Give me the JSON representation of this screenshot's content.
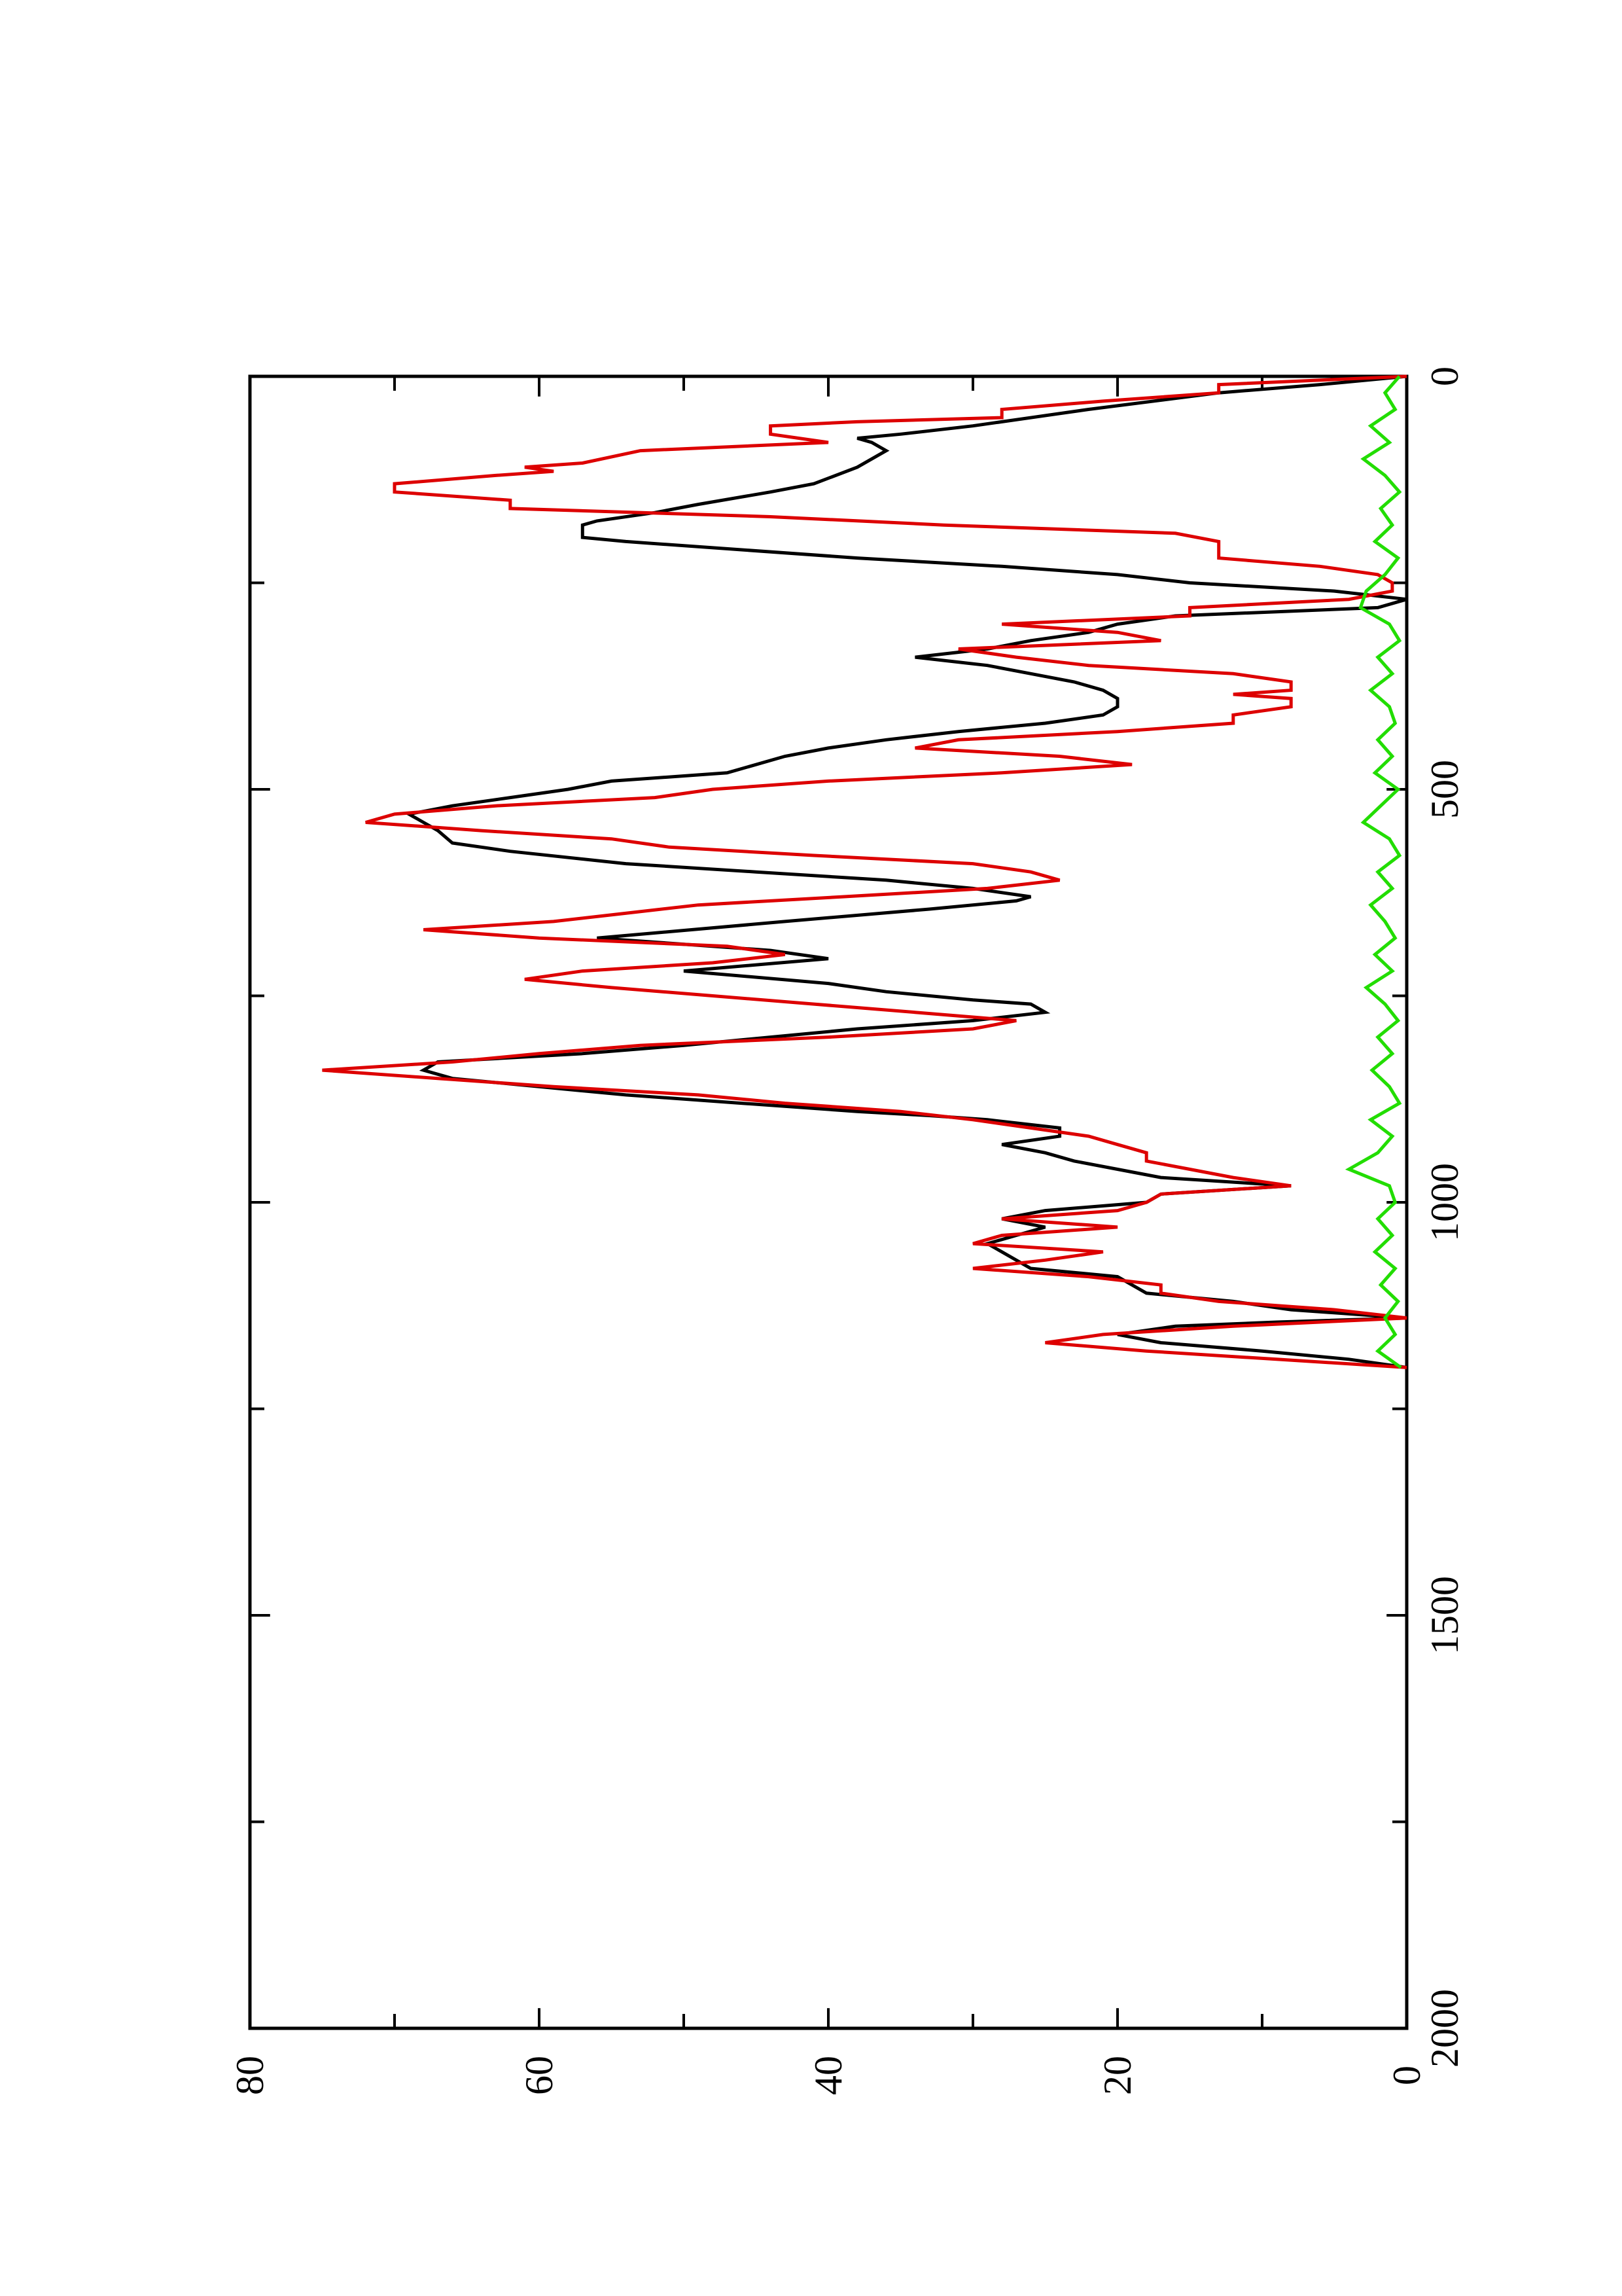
{
  "chart_data": {
    "type": "line",
    "orientation": "rotated-90",
    "title": "",
    "xlabel": "",
    "ylabel": "",
    "xlim": [
      0,
      2000
    ],
    "ylim": [
      0,
      80
    ],
    "x_ticks": [
      0,
      500,
      1000,
      1500,
      2000
    ],
    "y_ticks": [
      0,
      20,
      40,
      60,
      80
    ],
    "x_tick_labels": [
      "0",
      "500",
      "1000",
      "1500",
      "2000"
    ],
    "y_tick_labels": [
      "0",
      "20",
      "40",
      "60",
      "80"
    ],
    "grid": false,
    "legend": "none",
    "series": [
      {
        "color": "#000000",
        "points": [
          [
            0,
            0
          ],
          [
            10,
            6
          ],
          [
            20,
            13
          ],
          [
            40,
            22
          ],
          [
            60,
            30
          ],
          [
            70,
            35
          ],
          [
            75,
            38
          ],
          [
            80,
            37
          ],
          [
            90,
            36
          ],
          [
            110,
            38
          ],
          [
            130,
            41
          ],
          [
            140,
            44
          ],
          [
            155,
            49
          ],
          [
            165,
            52
          ],
          [
            175,
            56
          ],
          [
            180,
            57
          ],
          [
            195,
            57
          ],
          [
            200,
            54
          ],
          [
            210,
            46
          ],
          [
            220,
            38
          ],
          [
            230,
            28
          ],
          [
            240,
            20
          ],
          [
            250,
            15
          ],
          [
            260,
            5
          ],
          [
            270,
            0
          ],
          [
            280,
            2
          ],
          [
            290,
            16
          ],
          [
            300,
            20
          ],
          [
            310,
            22
          ],
          [
            320,
            26
          ],
          [
            330,
            29
          ],
          [
            340,
            34
          ],
          [
            350,
            29
          ],
          [
            360,
            26
          ],
          [
            370,
            23
          ],
          [
            380,
            21
          ],
          [
            390,
            20
          ],
          [
            400,
            20
          ],
          [
            410,
            21
          ],
          [
            420,
            25
          ],
          [
            430,
            31
          ],
          [
            440,
            36
          ],
          [
            450,
            40
          ],
          [
            460,
            43
          ],
          [
            480,
            47
          ],
          [
            490,
            55
          ],
          [
            500,
            58
          ],
          [
            510,
            62
          ],
          [
            520,
            66
          ],
          [
            530,
            69
          ],
          [
            540,
            68
          ],
          [
            550,
            67
          ],
          [
            565,
            66
          ],
          [
            575,
            62
          ],
          [
            590,
            54
          ],
          [
            600,
            45
          ],
          [
            610,
            36
          ],
          [
            620,
            30
          ],
          [
            630,
            26
          ],
          [
            635,
            27
          ],
          [
            645,
            33
          ],
          [
            660,
            43
          ],
          [
            680,
            56
          ],
          [
            695,
            44
          ],
          [
            705,
            40
          ],
          [
            720,
            50
          ],
          [
            735,
            40
          ],
          [
            745,
            36
          ],
          [
            755,
            30
          ],
          [
            760,
            26
          ],
          [
            770,
            25
          ],
          [
            780,
            30
          ],
          [
            790,
            38
          ],
          [
            800,
            44
          ],
          [
            810,
            50
          ],
          [
            820,
            57
          ],
          [
            830,
            67
          ],
          [
            840,
            68
          ],
          [
            850,
            66
          ],
          [
            860,
            60
          ],
          [
            870,
            54
          ],
          [
            880,
            46
          ],
          [
            890,
            38
          ],
          [
            895,
            33
          ],
          [
            900,
            29
          ],
          [
            910,
            24
          ],
          [
            920,
            24
          ],
          [
            930,
            28
          ],
          [
            940,
            25
          ],
          [
            950,
            23
          ],
          [
            960,
            20
          ],
          [
            970,
            17
          ],
          [
            980,
            8
          ],
          [
            990,
            17
          ],
          [
            1000,
            18
          ],
          [
            1010,
            25
          ],
          [
            1020,
            28
          ],
          [
            1030,
            25
          ],
          [
            1040,
            27
          ],
          [
            1050,
            29
          ],
          [
            1060,
            28
          ],
          [
            1080,
            26
          ],
          [
            1090,
            20
          ],
          [
            1100,
            19
          ],
          [
            1110,
            18
          ],
          [
            1120,
            12
          ],
          [
            1130,
            8
          ],
          [
            1140,
            0
          ],
          [
            1145,
            9
          ],
          [
            1150,
            16
          ],
          [
            1160,
            20
          ],
          [
            1170,
            17
          ],
          [
            1180,
            10
          ],
          [
            1190,
            4
          ],
          [
            1200,
            0
          ]
        ]
      },
      {
        "color": "#dd0000",
        "points": [
          [
            0,
            0
          ],
          [
            10,
            13
          ],
          [
            20,
            13
          ],
          [
            30,
            21
          ],
          [
            40,
            28
          ],
          [
            50,
            28
          ],
          [
            55,
            38
          ],
          [
            60,
            44
          ],
          [
            70,
            44
          ],
          [
            80,
            40
          ],
          [
            90,
            53
          ],
          [
            105,
            57
          ],
          [
            110,
            61
          ],
          [
            115,
            59
          ],
          [
            120,
            63
          ],
          [
            130,
            70
          ],
          [
            140,
            70
          ],
          [
            150,
            62
          ],
          [
            160,
            62
          ],
          [
            170,
            44
          ],
          [
            180,
            32
          ],
          [
            190,
            16
          ],
          [
            200,
            13
          ],
          [
            210,
            13
          ],
          [
            220,
            13
          ],
          [
            230,
            6
          ],
          [
            240,
            2
          ],
          [
            250,
            1
          ],
          [
            260,
            1
          ],
          [
            270,
            4
          ],
          [
            280,
            15
          ],
          [
            290,
            15
          ],
          [
            300,
            28
          ],
          [
            310,
            20
          ],
          [
            320,
            17
          ],
          [
            330,
            31
          ],
          [
            340,
            27
          ],
          [
            350,
            22
          ],
          [
            360,
            12
          ],
          [
            370,
            8
          ],
          [
            380,
            8
          ],
          [
            385,
            12
          ],
          [
            390,
            8
          ],
          [
            400,
            8
          ],
          [
            410,
            12
          ],
          [
            420,
            12
          ],
          [
            430,
            20
          ],
          [
            440,
            31
          ],
          [
            450,
            34
          ],
          [
            460,
            24
          ],
          [
            470,
            19
          ],
          [
            480,
            28
          ],
          [
            490,
            40
          ],
          [
            500,
            48
          ],
          [
            510,
            52
          ],
          [
            520,
            63
          ],
          [
            530,
            70
          ],
          [
            540,
            72
          ],
          [
            550,
            64
          ],
          [
            560,
            55
          ],
          [
            570,
            51
          ],
          [
            580,
            41
          ],
          [
            590,
            30
          ],
          [
            600,
            26
          ],
          [
            610,
            24
          ],
          [
            620,
            29
          ],
          [
            630,
            39
          ],
          [
            640,
            49
          ],
          [
            660,
            59
          ],
          [
            670,
            68
          ],
          [
            680,
            60
          ],
          [
            690,
            47
          ],
          [
            700,
            43
          ],
          [
            710,
            48
          ],
          [
            720,
            57
          ],
          [
            730,
            61
          ],
          [
            740,
            55
          ],
          [
            750,
            48
          ],
          [
            760,
            41
          ],
          [
            770,
            34
          ],
          [
            780,
            27
          ],
          [
            790,
            30
          ],
          [
            800,
            40
          ],
          [
            810,
            53
          ],
          [
            820,
            60
          ],
          [
            830,
            66
          ],
          [
            840,
            75
          ],
          [
            850,
            67
          ],
          [
            860,
            59
          ],
          [
            870,
            49
          ],
          [
            880,
            43
          ],
          [
            890,
            35
          ],
          [
            900,
            30
          ],
          [
            910,
            26
          ],
          [
            920,
            22
          ],
          [
            930,
            20
          ],
          [
            940,
            18
          ],
          [
            950,
            18
          ],
          [
            960,
            15
          ],
          [
            970,
            12
          ],
          [
            980,
            8
          ],
          [
            990,
            17
          ],
          [
            1000,
            18
          ],
          [
            1010,
            20
          ],
          [
            1020,
            28
          ],
          [
            1030,
            20
          ],
          [
            1040,
            28
          ],
          [
            1050,
            30
          ],
          [
            1060,
            21
          ],
          [
            1070,
            25
          ],
          [
            1080,
            30
          ],
          [
            1090,
            22
          ],
          [
            1100,
            17
          ],
          [
            1110,
            17
          ],
          [
            1120,
            13
          ],
          [
            1130,
            5
          ],
          [
            1140,
            0
          ],
          [
            1150,
            12
          ],
          [
            1160,
            21
          ],
          [
            1170,
            25
          ],
          [
            1180,
            18
          ],
          [
            1190,
            9
          ],
          [
            1200,
            0
          ]
        ]
      },
      {
        "color": "#22dd00",
        "points": [
          [
            0,
            0.5
          ],
          [
            20,
            1.5
          ],
          [
            40,
            0.8
          ],
          [
            60,
            2.5
          ],
          [
            80,
            1.2
          ],
          [
            100,
            3
          ],
          [
            120,
            1.5
          ],
          [
            140,
            0.5
          ],
          [
            160,
            1.8
          ],
          [
            180,
            1
          ],
          [
            200,
            2.2
          ],
          [
            220,
            0.6
          ],
          [
            240,
            1.5
          ],
          [
            260,
            2.8
          ],
          [
            280,
            3.2
          ],
          [
            300,
            1.2
          ],
          [
            320,
            0.5
          ],
          [
            340,
            2
          ],
          [
            360,
            1
          ],
          [
            380,
            2.5
          ],
          [
            400,
            1.2
          ],
          [
            420,
            0.8
          ],
          [
            440,
            2
          ],
          [
            460,
            1
          ],
          [
            480,
            2.2
          ],
          [
            500,
            0.6
          ],
          [
            520,
            1.8
          ],
          [
            540,
            3
          ],
          [
            560,
            1.2
          ],
          [
            580,
            0.5
          ],
          [
            600,
            2
          ],
          [
            620,
            1
          ],
          [
            640,
            2.5
          ],
          [
            660,
            1.5
          ],
          [
            680,
            0.8
          ],
          [
            700,
            2.2
          ],
          [
            720,
            1
          ],
          [
            740,
            2.8
          ],
          [
            760,
            1.5
          ],
          [
            780,
            0.6
          ],
          [
            800,
            2
          ],
          [
            820,
            1
          ],
          [
            840,
            2.4
          ],
          [
            860,
            1.2
          ],
          [
            880,
            0.5
          ],
          [
            900,
            2.5
          ],
          [
            920,
            1
          ],
          [
            940,
            2
          ],
          [
            960,
            4
          ],
          [
            980,
            1.2
          ],
          [
            1000,
            0.8
          ],
          [
            1020,
            2
          ],
          [
            1040,
            1
          ],
          [
            1060,
            2.2
          ],
          [
            1080,
            0.8
          ],
          [
            1100,
            1.8
          ],
          [
            1120,
            0.6
          ],
          [
            1140,
            1.5
          ],
          [
            1160,
            0.8
          ],
          [
            1180,
            2
          ],
          [
            1200,
            0.4
          ]
        ]
      }
    ]
  }
}
